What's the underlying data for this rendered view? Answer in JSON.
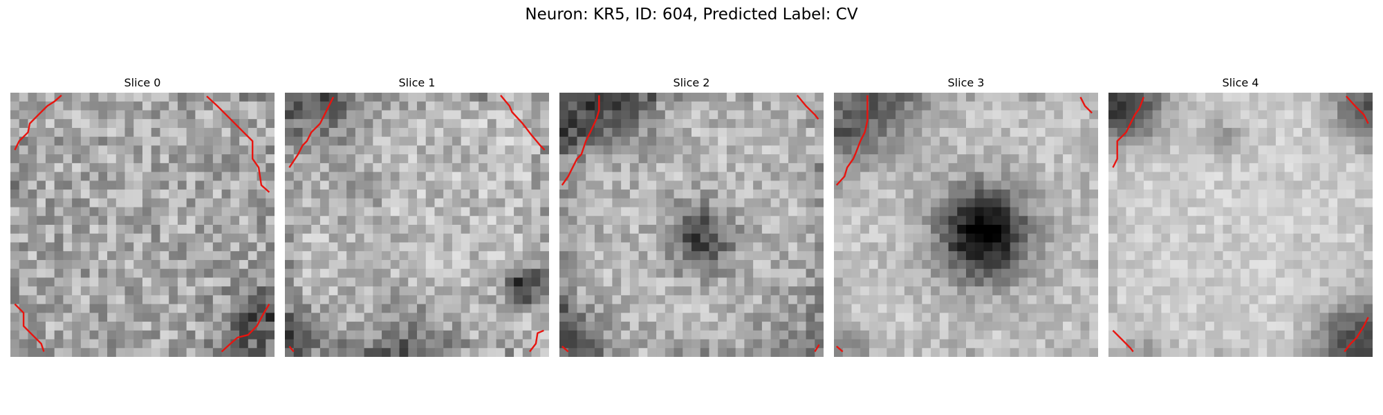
{
  "figure": {
    "title": "Neuron: KR5, ID: 604, Predicted Label: CV",
    "panels": [
      {
        "title": "Slice 0"
      },
      {
        "title": "Slice 1"
      },
      {
        "title": "Slice 2"
      },
      {
        "title": "Slice 3"
      },
      {
        "title": "Slice 4"
      }
    ]
  },
  "colors": {
    "contour": "#e8140f",
    "background": "#ffffff"
  }
}
